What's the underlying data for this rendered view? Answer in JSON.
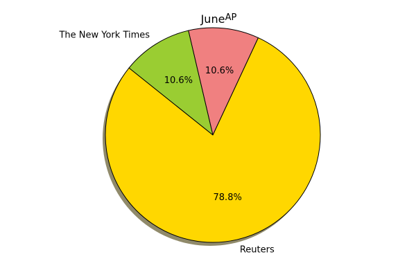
{
  "chart_data": {
    "type": "pie",
    "title": "June",
    "labels": [
      "AP",
      "The New York Times",
      "Reuters"
    ],
    "values": [
      10.6,
      10.6,
      78.8
    ],
    "percent_labels": [
      "10.6%",
      "10.6%",
      "78.8%"
    ],
    "colors": [
      "#f08080",
      "#9acd32",
      "#ffd700"
    ],
    "shadow": true,
    "start_angle_deg": 65,
    "direction": "counterclockwise"
  }
}
